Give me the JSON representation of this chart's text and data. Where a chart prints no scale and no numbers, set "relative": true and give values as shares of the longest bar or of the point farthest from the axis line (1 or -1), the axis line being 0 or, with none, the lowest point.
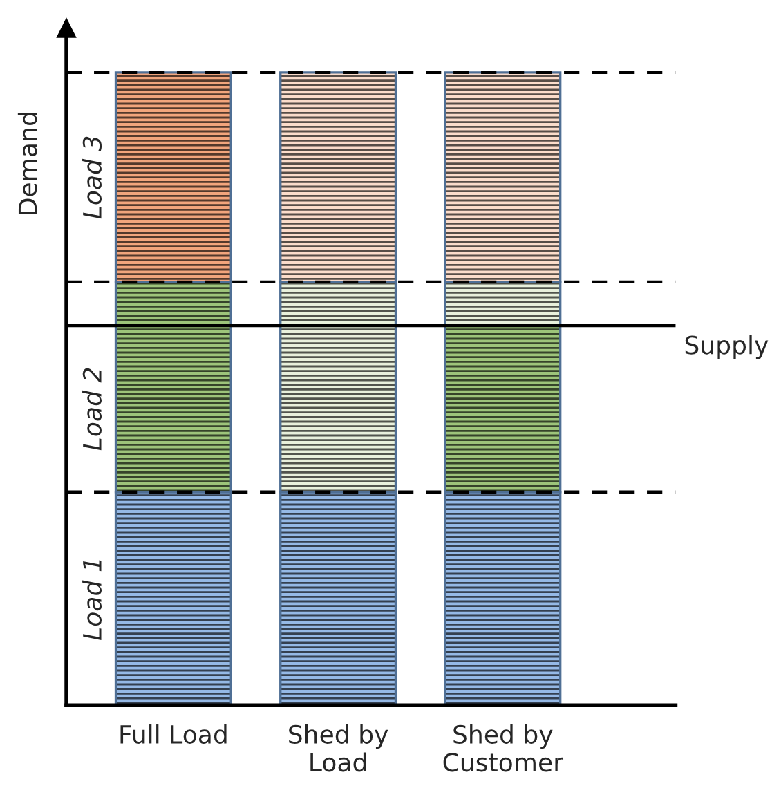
{
  "chart_data": {
    "type": "bar",
    "stacked": true,
    "relative": true,
    "ylabel": "Demand",
    "categories": [
      "Full Load",
      "Shed by\nLoad",
      "Shed by\nCustomer"
    ],
    "series": [
      {
        "name": "Load 1",
        "colors": [
          "#95b9e6",
          "#95b9e6",
          "#95b9e6"
        ],
        "values": [
          0.337,
          0.337,
          0.337
        ]
      },
      {
        "name": "Load 2",
        "colors": [
          "#9dc47a",
          "#e8f0dc",
          "#9dc47a"
        ],
        "values": [
          0.263,
          0.263,
          0.263
        ]
      },
      {
        "colors": [
          "#9dc47a",
          "#e8f0dc",
          "#e8f0dc"
        ],
        "values": [
          0.069,
          0.069,
          0.069
        ]
      },
      {
        "name": "Load 3",
        "colors": [
          "#f2a57c",
          "#fbdccb",
          "#fbdccb"
        ],
        "values": [
          0.331,
          0.331,
          0.331
        ]
      }
    ],
    "ref_lines": [
      {
        "axis": "y",
        "value": 0.337,
        "color": "#000000",
        "line_style": "dashed"
      },
      {
        "axis": "y",
        "value": 0.669,
        "color": "#000000",
        "line_style": "dashed"
      },
      {
        "axis": "y",
        "value": 1.0,
        "color": "#000000",
        "line_style": "dashed"
      },
      {
        "axis": "y",
        "value": 0.6,
        "label": "Supply",
        "color": "#000000",
        "line_style": "solid"
      }
    ],
    "grid": false,
    "legend": false
  }
}
